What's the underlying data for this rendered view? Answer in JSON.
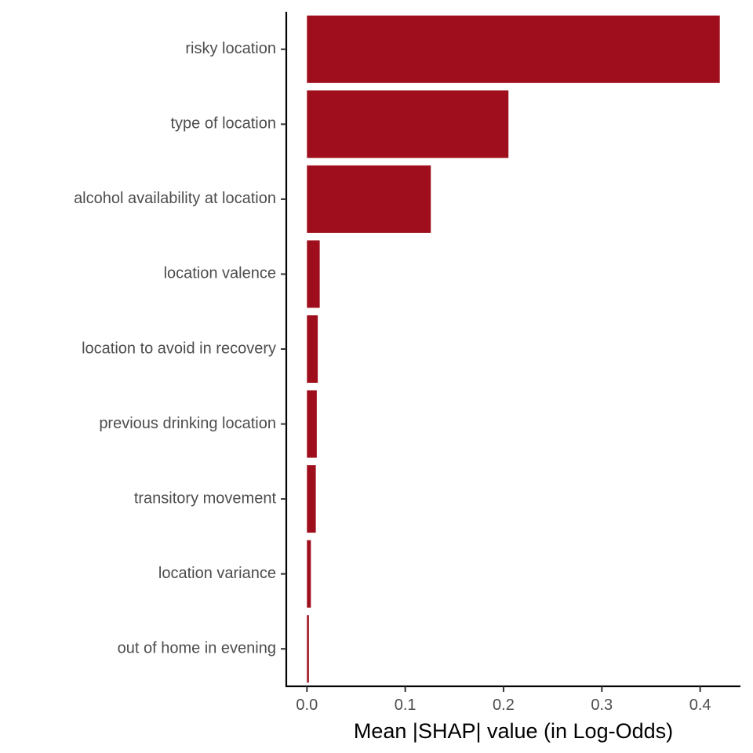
{
  "chart_data": {
    "type": "bar",
    "orientation": "horizontal",
    "categories": [
      "risky location",
      "type of location",
      "alcohol availability at location",
      "location valence",
      "location to avoid in recovery",
      "previous drinking location",
      "transitory movement",
      "location variance",
      "out of home in evening"
    ],
    "values": [
      0.42,
      0.205,
      0.126,
      0.013,
      0.011,
      0.01,
      0.009,
      0.004,
      0.002
    ],
    "xlabel": "Mean |SHAP| value (in Log-Odds)",
    "ylabel": "",
    "title": "",
    "xlim": [
      -0.021,
      0.441
    ],
    "xticks": [
      0.0,
      0.1,
      0.2,
      0.3,
      0.4
    ],
    "xtick_labels": [
      "0.0",
      "0.1",
      "0.2",
      "0.3",
      "0.4"
    ],
    "bar_color": "#9E0E1C",
    "grid": false,
    "legend": "none"
  }
}
